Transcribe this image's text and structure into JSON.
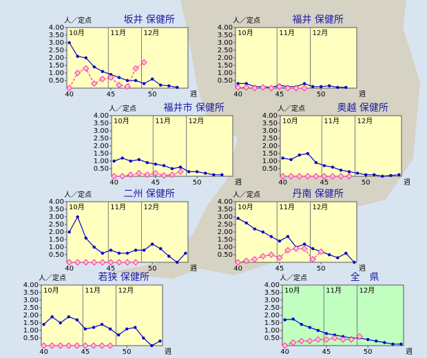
{
  "chart_data": [
    {
      "type": "line",
      "title": "坂井 保健所",
      "y_label": "人／定点",
      "x_label": "週",
      "background": "#ffffc0",
      "x": [
        40,
        41,
        42,
        43,
        44,
        45,
        46,
        47,
        48,
        49,
        50,
        51,
        52,
        53,
        54
      ],
      "xlim": [
        39.7,
        54.3
      ],
      "xticks": [
        40,
        45,
        50
      ],
      "ylim": [
        0,
        4
      ],
      "yticks": [
        {
          "value": 0.5,
          "label": "0.50"
        },
        {
          "value": 1,
          "label": "1.00"
        },
        {
          "value": 1.5,
          "label": "1.50"
        },
        {
          "value": 2,
          "label": "2.00"
        },
        {
          "value": 2.5,
          "label": "2.50"
        },
        {
          "value": 3,
          "label": "3.00"
        },
        {
          "value": 3.5,
          "label": "3.50"
        },
        {
          "value": 4,
          "label": "4.00"
        }
      ],
      "months": [
        {
          "label": "10月",
          "x": 39.7
        },
        {
          "label": "11月",
          "x": 44.7
        },
        {
          "label": "12月",
          "x": 48.7
        }
      ],
      "series": [
        {
          "color": "#0000cc",
          "marker": "circle",
          "dashed": false,
          "values": [
            3.0,
            2.1,
            2.0,
            1.4,
            1.1,
            0.9,
            0.7,
            0.5,
            0.5,
            0.3,
            0.6,
            0.2,
            0.15,
            0.05,
            null
          ]
        },
        {
          "color": "#ff3399",
          "marker": "diamond",
          "dashed": true,
          "values": [
            0.0,
            1.0,
            1.3,
            0.3,
            0.6,
            0.7,
            0.2,
            0.1,
            1.3,
            1.7,
            null,
            null,
            null,
            null,
            null
          ]
        }
      ]
    },
    {
      "type": "line",
      "title": "福井 保健所",
      "y_label": "人／定点",
      "x_label": "週",
      "background": "#ffffc0",
      "x": [
        40,
        41,
        42,
        43,
        44,
        45,
        46,
        47,
        48,
        49,
        50,
        51,
        52,
        53,
        54
      ],
      "xlim": [
        39.7,
        54.3
      ],
      "xticks": [
        40,
        45,
        50
      ],
      "ylim": [
        0,
        4
      ],
      "yticks": [
        {
          "value": 0.5,
          "label": "0.50"
        },
        {
          "value": 1,
          "label": "1.00"
        },
        {
          "value": 1.5,
          "label": "1.50"
        },
        {
          "value": 2,
          "label": "2.00"
        },
        {
          "value": 2.5,
          "label": "2.50"
        },
        {
          "value": 3,
          "label": "3.00"
        },
        {
          "value": 3.5,
          "label": "3.50"
        },
        {
          "value": 4,
          "label": "4.00"
        }
      ],
      "months": [
        {
          "label": "10月",
          "x": 39.7
        },
        {
          "label": "11月",
          "x": 44.7
        },
        {
          "label": "12月",
          "x": 48.7
        }
      ],
      "series": [
        {
          "color": "#0000cc",
          "marker": "circle",
          "dashed": false,
          "values": [
            0.3,
            0.3,
            0.1,
            0.1,
            0.05,
            0.2,
            0.1,
            0.1,
            0.3,
            0.1,
            0.1,
            0.15,
            0.05,
            0.05,
            null
          ]
        },
        {
          "color": "#ff3399",
          "marker": "diamond",
          "dashed": true,
          "values": [
            0.05,
            0.05,
            0,
            0.05,
            0,
            0.1,
            0,
            0,
            0,
            null,
            null,
            null,
            null,
            null,
            null
          ]
        }
      ]
    },
    {
      "type": "line",
      "title": "福井市 保健所",
      "y_label": "人／定点",
      "x_label": "週",
      "background": "#ffffc0",
      "x": [
        40,
        41,
        42,
        43,
        44,
        45,
        46,
        47,
        48,
        49,
        50,
        51,
        52,
        53,
        54
      ],
      "xlim": [
        39.7,
        54.3
      ],
      "xticks": [
        40,
        45,
        50
      ],
      "ylim": [
        0,
        4
      ],
      "yticks": [
        {
          "value": 0.5,
          "label": "0.50"
        },
        {
          "value": 1,
          "label": "1.00"
        },
        {
          "value": 1.5,
          "label": "1.50"
        },
        {
          "value": 2,
          "label": "2.00"
        },
        {
          "value": 2.5,
          "label": "2.50"
        },
        {
          "value": 3,
          "label": "3.00"
        },
        {
          "value": 3.5,
          "label": "3.50"
        },
        {
          "value": 4,
          "label": "4.00"
        }
      ],
      "months": [
        {
          "label": "10月",
          "x": 39.7
        },
        {
          "label": "11月",
          "x": 44.7
        },
        {
          "label": "12月",
          "x": 48.7
        }
      ],
      "series": [
        {
          "color": "#0000cc",
          "marker": "circle",
          "dashed": false,
          "values": [
            1.0,
            1.2,
            1.0,
            1.1,
            0.9,
            0.8,
            0.7,
            0.5,
            0.6,
            0.3,
            0.3,
            0.2,
            0.1,
            0.1,
            null
          ]
        },
        {
          "color": "#ff3399",
          "marker": "diamond",
          "dashed": true,
          "values": [
            0,
            0,
            0.1,
            0.2,
            0.1,
            0.2,
            0.05,
            0.1,
            0.3,
            null,
            null,
            null,
            null,
            null,
            null
          ]
        }
      ]
    },
    {
      "type": "line",
      "title": "奥越 保健所",
      "y_label": "人／定点",
      "x_label": "週",
      "background": "#ffffc0",
      "x": [
        40,
        41,
        42,
        43,
        44,
        45,
        46,
        47,
        48,
        49,
        50,
        51,
        52,
        53,
        54
      ],
      "xlim": [
        39.7,
        54.3
      ],
      "xticks": [
        40,
        45,
        50
      ],
      "ylim": [
        0,
        4
      ],
      "yticks": [
        {
          "value": 0.5,
          "label": "0.50"
        },
        {
          "value": 1,
          "label": "1.00"
        },
        {
          "value": 1.5,
          "label": "1.50"
        },
        {
          "value": 2,
          "label": "2.00"
        },
        {
          "value": 2.5,
          "label": "2.50"
        },
        {
          "value": 3,
          "label": "3.00"
        },
        {
          "value": 3.5,
          "label": "3.50"
        },
        {
          "value": 4,
          "label": "4.00"
        }
      ],
      "months": [
        {
          "label": "10月",
          "x": 39.7
        },
        {
          "label": "11月",
          "x": 44.7
        },
        {
          "label": "12月",
          "x": 48.7
        }
      ],
      "series": [
        {
          "color": "#0000cc",
          "marker": "circle",
          "dashed": false,
          "values": [
            1.2,
            1.1,
            1.4,
            1.5,
            0.9,
            0.7,
            0.6,
            0.4,
            0.3,
            0.2,
            0.1,
            0.1,
            0.0,
            0.05,
            0.1
          ]
        },
        {
          "color": "#ff3399",
          "marker": "diamond",
          "dashed": true,
          "values": [
            0,
            0,
            0,
            0,
            0,
            0,
            0,
            0,
            0,
            null,
            null,
            null,
            null,
            null,
            null
          ]
        }
      ]
    },
    {
      "type": "line",
      "title": "二州 保健所",
      "y_label": "人／定点",
      "x_label": "週",
      "background": "#ffffc0",
      "x": [
        40,
        41,
        42,
        43,
        44,
        45,
        46,
        47,
        48,
        49,
        50,
        51,
        52,
        53,
        54
      ],
      "xlim": [
        39.7,
        54.3
      ],
      "xticks": [
        40,
        45,
        50
      ],
      "ylim": [
        0,
        4
      ],
      "yticks": [
        {
          "value": 0.5,
          "label": "0.50"
        },
        {
          "value": 1,
          "label": "1.00"
        },
        {
          "value": 1.5,
          "label": "1.50"
        },
        {
          "value": 2,
          "label": "2.00"
        },
        {
          "value": 2.5,
          "label": "2.50"
        },
        {
          "value": 3,
          "label": "3.00"
        },
        {
          "value": 3.5,
          "label": "3.50"
        },
        {
          "value": 4,
          "label": "4.00"
        }
      ],
      "months": [
        {
          "label": "10月",
          "x": 39.7
        },
        {
          "label": "11月",
          "x": 44.7
        },
        {
          "label": "12月",
          "x": 48.7
        }
      ],
      "series": [
        {
          "color": "#0000cc",
          "marker": "circle",
          "dashed": false,
          "values": [
            2.0,
            3.0,
            1.6,
            1.0,
            0.6,
            0.8,
            0.6,
            0.6,
            0.8,
            0.8,
            1.2,
            0.9,
            0.4,
            0.0,
            0.6
          ]
        },
        {
          "color": "#ff3399",
          "marker": "diamond",
          "dashed": true,
          "values": [
            0,
            0,
            0,
            0,
            0,
            0,
            0,
            0,
            0,
            null,
            null,
            null,
            null,
            null,
            null
          ]
        }
      ]
    },
    {
      "type": "line",
      "title": "丹南 保健所",
      "y_label": "人／定点",
      "x_label": "週",
      "background": "#ffffc0",
      "x": [
        40,
        41,
        42,
        43,
        44,
        45,
        46,
        47,
        48,
        49,
        50,
        51,
        52,
        53,
        54
      ],
      "xlim": [
        39.7,
        54.3
      ],
      "xticks": [
        40,
        45,
        50
      ],
      "ylim": [
        0,
        4
      ],
      "yticks": [
        {
          "value": 0.5,
          "label": "0.50"
        },
        {
          "value": 1,
          "label": "1.00"
        },
        {
          "value": 1.5,
          "label": "1.50"
        },
        {
          "value": 2,
          "label": "2.00"
        },
        {
          "value": 2.5,
          "label": "2.50"
        },
        {
          "value": 3,
          "label": "3.00"
        },
        {
          "value": 3.5,
          "label": "3.50"
        },
        {
          "value": 4,
          "label": "4.00"
        }
      ],
      "months": [
        {
          "label": "10月",
          "x": 39.7
        },
        {
          "label": "11月",
          "x": 44.7
        },
        {
          "label": "12月",
          "x": 48.7
        }
      ],
      "series": [
        {
          "color": "#0000cc",
          "marker": "circle",
          "dashed": false,
          "values": [
            2.9,
            2.6,
            2.2,
            2.0,
            1.7,
            1.4,
            1.7,
            1.0,
            1.2,
            0.9,
            0.7,
            0.5,
            0.3,
            0.6,
            0.0
          ]
        },
        {
          "color": "#ff3399",
          "marker": "diamond",
          "dashed": true,
          "values": [
            0,
            0.1,
            0.2,
            0.4,
            0.5,
            0.3,
            0.8,
            0.9,
            0.9,
            0.2,
            0.7,
            null,
            null,
            null,
            null
          ]
        }
      ]
    },
    {
      "type": "line",
      "title": "若狭 保健所",
      "y_label": "人／定点",
      "x_label": "週",
      "background": "#ffffc0",
      "x": [
        40,
        41,
        42,
        43,
        44,
        45,
        46,
        47,
        48,
        49,
        50,
        51,
        52,
        53,
        54
      ],
      "xlim": [
        39.7,
        54.3
      ],
      "xticks": [
        40,
        45,
        50
      ],
      "ylim": [
        0,
        4
      ],
      "yticks": [
        {
          "value": 0.5,
          "label": "0.50"
        },
        {
          "value": 1,
          "label": "1.00"
        },
        {
          "value": 1.5,
          "label": "1.50"
        },
        {
          "value": 2,
          "label": "2.00"
        },
        {
          "value": 2.5,
          "label": "2.50"
        },
        {
          "value": 3,
          "label": "3.00"
        },
        {
          "value": 3.5,
          "label": "3.50"
        },
        {
          "value": 4,
          "label": "4.00"
        }
      ],
      "months": [
        {
          "label": "10月",
          "x": 39.7
        },
        {
          "label": "11月",
          "x": 44.7
        },
        {
          "label": "12月",
          "x": 48.7
        }
      ],
      "series": [
        {
          "color": "#0000cc",
          "marker": "circle",
          "dashed": false,
          "values": [
            1.4,
            1.9,
            1.5,
            1.9,
            1.7,
            1.1,
            1.2,
            1.4,
            1.1,
            0.7,
            1.1,
            1.2,
            0.5,
            0.0,
            0.3
          ]
        },
        {
          "color": "#ff3399",
          "marker": "diamond",
          "dashed": true,
          "values": [
            0,
            0,
            0,
            0,
            0,
            0,
            0,
            0,
            0,
            null,
            null,
            null,
            null,
            null,
            null
          ]
        }
      ]
    },
    {
      "type": "line",
      "title": "全　県",
      "y_label": "人／定点",
      "x_label": "週",
      "background": "#c0ffc0",
      "x": [
        40,
        41,
        42,
        43,
        44,
        45,
        46,
        47,
        48,
        49,
        50,
        51,
        52,
        53,
        54
      ],
      "xlim": [
        39.7,
        54.3
      ],
      "xticks": [
        40,
        45,
        50
      ],
      "ylim": [
        0,
        4
      ],
      "yticks": [
        {
          "value": 0.5,
          "label": "0.50"
        },
        {
          "value": 1,
          "label": "1.00"
        },
        {
          "value": 1.5,
          "label": "1.50"
        },
        {
          "value": 2,
          "label": "2.00"
        },
        {
          "value": 2.5,
          "label": "2.50"
        },
        {
          "value": 3,
          "label": "3.00"
        },
        {
          "value": 3.5,
          "label": "3.50"
        },
        {
          "value": 4,
          "label": "4.00"
        }
      ],
      "months": [
        {
          "label": "10月",
          "x": 39.7
        },
        {
          "label": "11月",
          "x": 44.7
        },
        {
          "label": "12月",
          "x": 48.7
        }
      ],
      "series": [
        {
          "color": "#0000cc",
          "marker": "circle",
          "dashed": false,
          "values": [
            1.7,
            1.75,
            1.4,
            1.2,
            1.0,
            0.8,
            0.7,
            0.6,
            0.5,
            0.5,
            0.4,
            0.3,
            0.2,
            0.1,
            0.1
          ]
        },
        {
          "color": "#ff3399",
          "marker": "diamond",
          "dashed": true,
          "values": [
            0,
            0.2,
            0.3,
            0.3,
            0.4,
            0.4,
            0.5,
            0.4,
            0.4,
            0.6,
            null,
            null,
            null,
            null,
            null
          ]
        }
      ]
    }
  ]
}
